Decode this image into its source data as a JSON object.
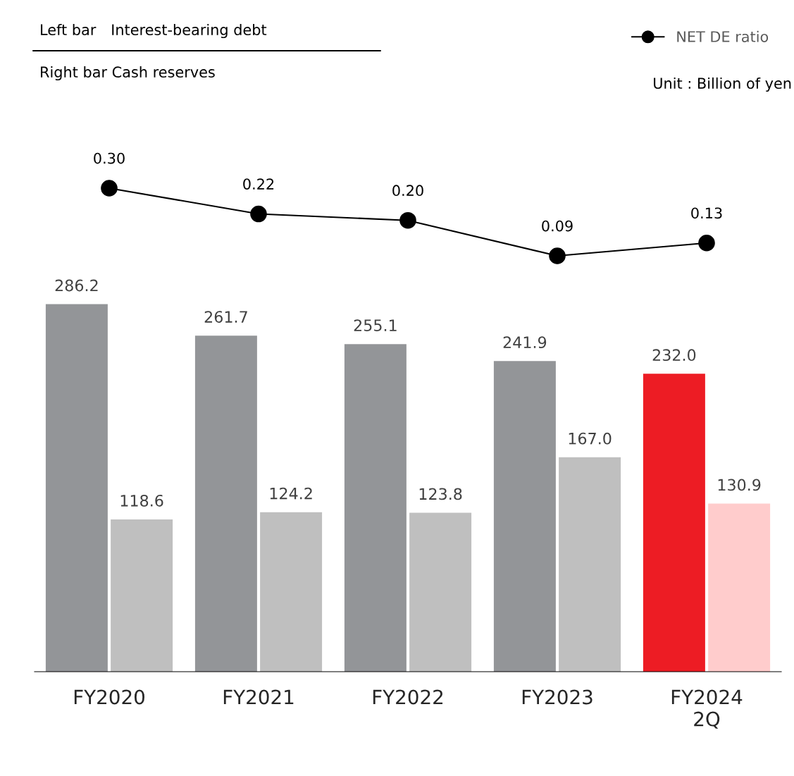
{
  "chart_data": [
    {
      "type": "bar",
      "categories": [
        "FY2020",
        "FY2021",
        "FY2022",
        "FY2023",
        "FY2024\n2Q"
      ],
      "series": [
        {
          "color": "#939598",
          "colors": [
            "#939598",
            "#939598",
            "#939598",
            "#939598",
            "#ed1c24"
          ],
          "values": [
            286.2,
            261.7,
            255.1,
            241.9,
            232.0
          ],
          "value_labels": [
            "286.2",
            "261.7",
            "255.1",
            "241.9",
            "232.0"
          ]
        },
        {
          "color": "#bfbfbf",
          "colors": [
            "#bfbfbf",
            "#bfbfbf",
            "#bfbfbf",
            "#bfbfbf",
            "#ffcccc"
          ],
          "values": [
            118.6,
            124.2,
            123.8,
            167.0,
            130.9
          ],
          "value_labels": [
            "118.6",
            "124.2",
            "123.8",
            "167.0",
            "130.9"
          ]
        }
      ],
      "data_labels": true,
      "grid": false,
      "annotations": [
        "Left bar Interest-bearing debt",
        "Right bar Cash reserves",
        "Unit : Billion of yen"
      ]
    },
    {
      "type": "line",
      "categories": [
        null,
        null,
        null,
        null,
        null
      ],
      "series": [
        {
          "name": "NET DE ratio",
          "color": "#000000",
          "values": [
            0.3,
            0.22,
            0.2,
            0.09,
            0.13
          ],
          "value_labels": [
            "0.30",
            "0.22",
            "0.20",
            "0.09",
            "0.13"
          ]
        }
      ],
      "data_labels": true,
      "marker": "circle",
      "legend": "top right"
    }
  ]
}
